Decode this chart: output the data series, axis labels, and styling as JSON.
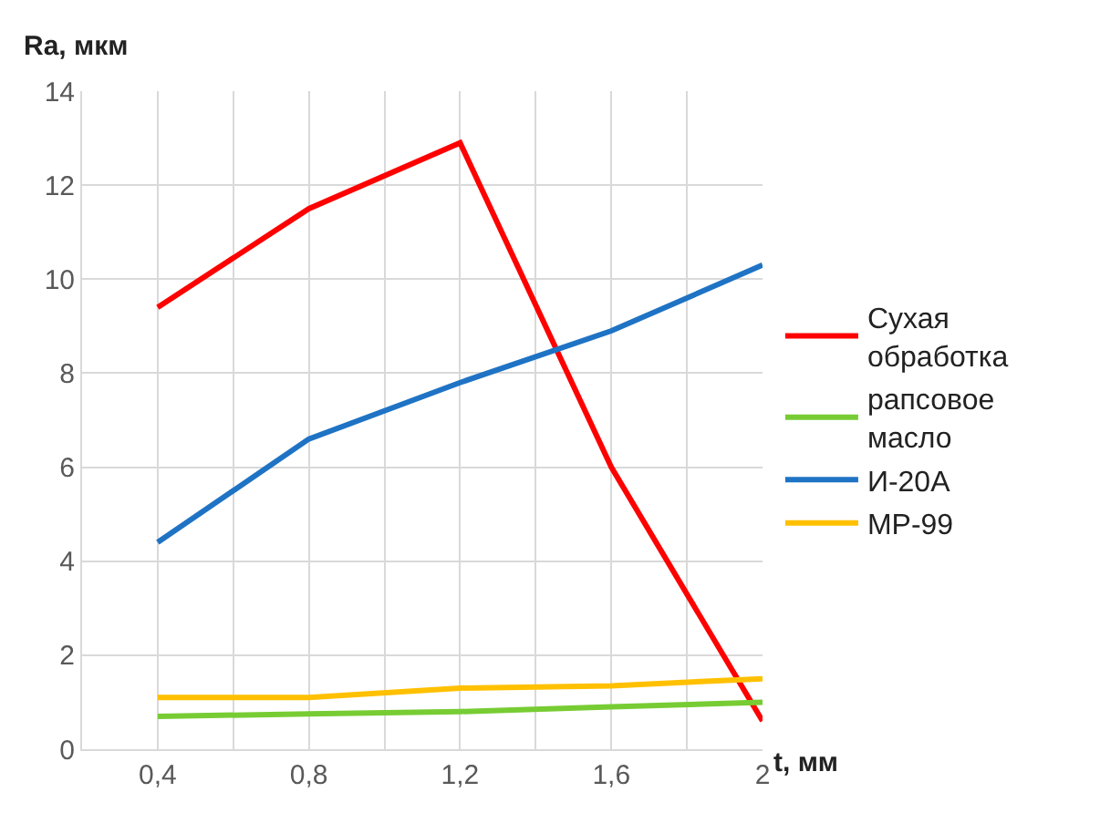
{
  "chart_data": {
    "type": "line",
    "xlabel": "t, мм",
    "ylabel": "Ra, мкм",
    "x": [
      0.4,
      0.8,
      1.2,
      1.6,
      2
    ],
    "series": [
      {
        "name": "Сухая обработка",
        "color": "#ff0000",
        "values": [
          9.4,
          11.5,
          12.9,
          6.0,
          0.6
        ]
      },
      {
        "name": "рапсовое масло",
        "color": "#77cc33",
        "values": [
          0.7,
          0.75,
          0.8,
          0.9,
          1.0
        ]
      },
      {
        "name": "И-20А",
        "color": "#1f73c4",
        "values": [
          4.4,
          6.6,
          7.8,
          8.9,
          10.3
        ]
      },
      {
        "name": "МР-99",
        "color": "#ffc000",
        "values": [
          1.1,
          1.1,
          1.3,
          1.35,
          1.5
        ]
      }
    ],
    "xlim": [
      0.2,
      2
    ],
    "xticks": [
      {
        "value": 0.2,
        "label": null
      },
      {
        "value": 0.4,
        "label": "0,4"
      },
      {
        "value": 0.6,
        "label": null
      },
      {
        "value": 0.8,
        "label": "0,8"
      },
      {
        "value": 1.0,
        "label": null
      },
      {
        "value": 1.2,
        "label": "1,2"
      },
      {
        "value": 1.4,
        "label": null
      },
      {
        "value": 1.6,
        "label": "1,6"
      },
      {
        "value": 1.8,
        "label": null
      },
      {
        "value": 2,
        "label": "2"
      }
    ],
    "ylim": [
      0,
      14
    ],
    "yticks": [
      0,
      2,
      4,
      6,
      8,
      10,
      12,
      14
    ],
    "grid": true,
    "legend": "right",
    "marker": "none",
    "line_style": "solid"
  }
}
